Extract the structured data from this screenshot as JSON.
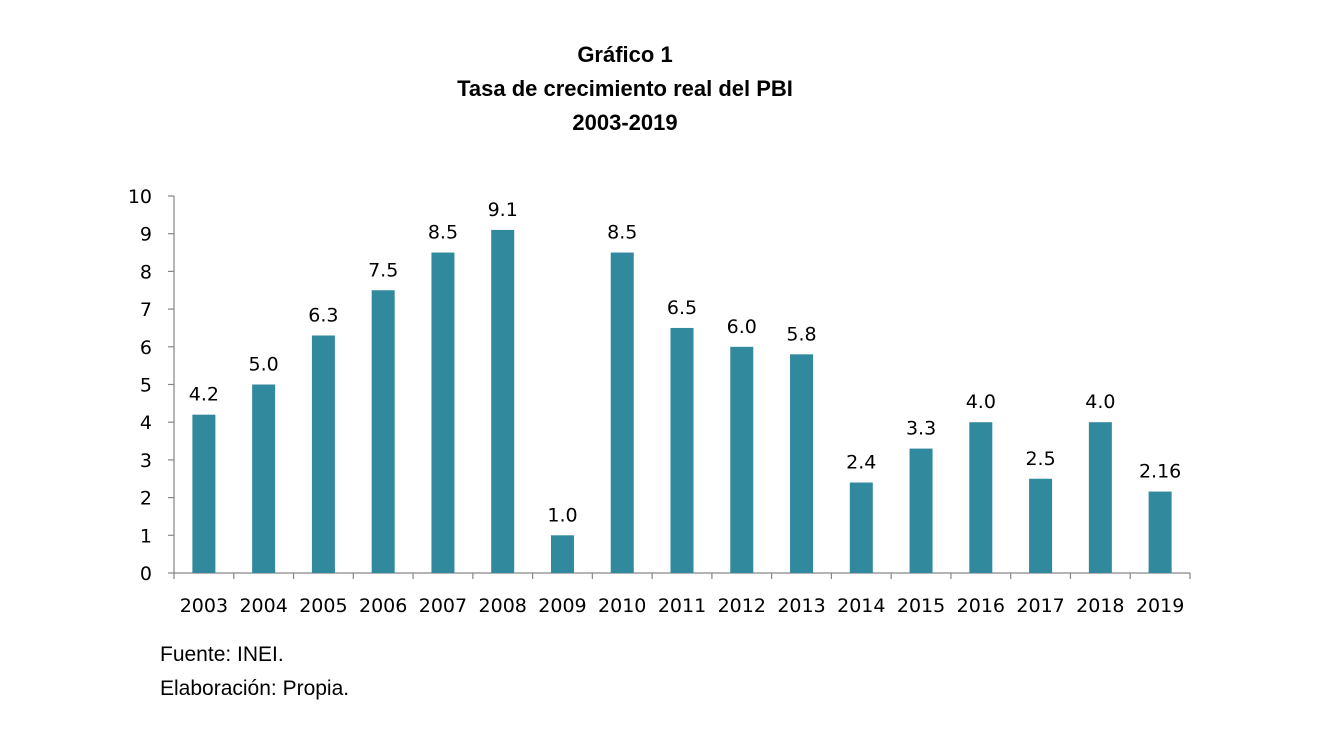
{
  "title_lines": [
    "Gráfico 1",
    "Tasa de crecimiento real del PBI",
    "2003-2019"
  ],
  "notes": {
    "source": "Fuente: INEI.",
    "author": "Elaboración: Propia."
  },
  "colors": {
    "bar": "#31899e",
    "axis": "#868686",
    "text": "#000000"
  },
  "chart_data": {
    "type": "bar",
    "title": "Tasa de crecimiento real del PBI",
    "categories": [
      "2003",
      "2004",
      "2005",
      "2006",
      "2007",
      "2008",
      "2009",
      "2010",
      "2011",
      "2012",
      "2013",
      "2014",
      "2015",
      "2016",
      "2017",
      "2018",
      "2019"
    ],
    "values": [
      4.2,
      5.0,
      6.3,
      7.5,
      8.5,
      9.1,
      1.0,
      8.5,
      6.5,
      6.0,
      5.8,
      2.4,
      3.3,
      4.0,
      2.5,
      4.0,
      2.16
    ],
    "data_labels": [
      "4.2",
      "5.0",
      "6.3",
      "7.5",
      "8.5",
      "9.1",
      "1.0",
      "8.5",
      "6.5",
      "6.0",
      "5.8",
      "2.4",
      "3.3",
      "4.0",
      "2.5",
      "4.0",
      "2.16"
    ],
    "yticks": [
      "0",
      "1",
      "2",
      "3",
      "4",
      "5",
      "6",
      "7",
      "8",
      "9",
      "10"
    ],
    "ylim": [
      0,
      10
    ],
    "xlabel": "",
    "ylabel": "",
    "grid": false,
    "legend": "none"
  }
}
